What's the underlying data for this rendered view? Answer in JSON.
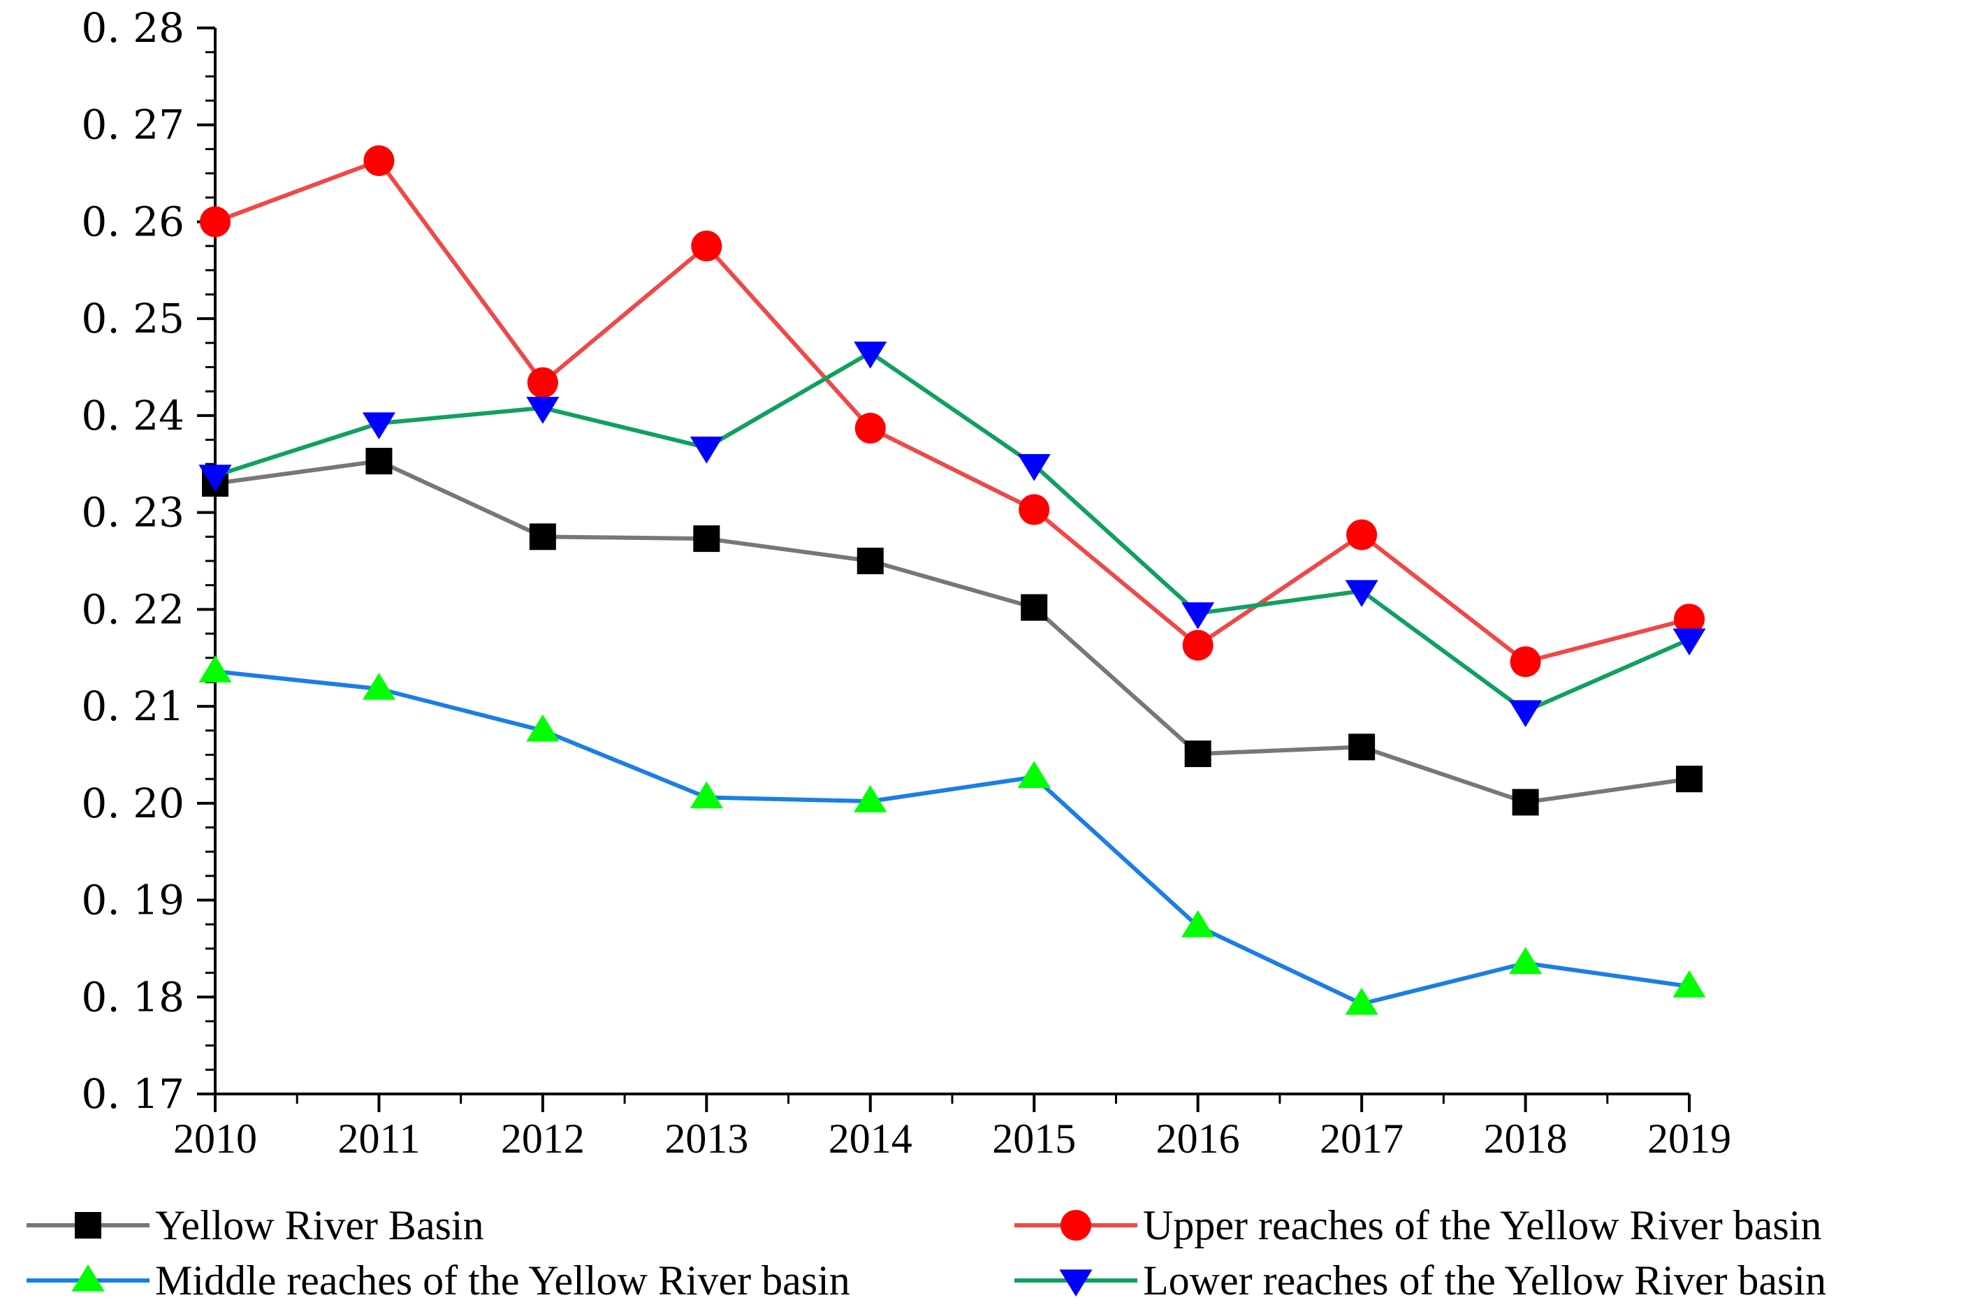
{
  "chart_data": {
    "type": "line",
    "title": "",
    "xlabel": "",
    "ylabel": "",
    "x": [
      "2010",
      "2011",
      "2012",
      "2013",
      "2014",
      "2015",
      "2016",
      "2017",
      "2018",
      "2019"
    ],
    "ylim": [
      0.17,
      0.28
    ],
    "yticks": [
      "0.17",
      "0.18",
      "0.19",
      "0.20",
      "0.21",
      "0.22",
      "0.23",
      "0.24",
      "0.25",
      "0.26",
      "0.27",
      "0.28"
    ],
    "ytick_labels": [
      "0. 17",
      "0. 18",
      "0. 19",
      "0. 20",
      "0. 21",
      "0. 22",
      "0. 23",
      "0. 24",
      "0. 25",
      "0. 26",
      "0. 27",
      "0. 28"
    ],
    "legend_position": "bottom",
    "series": [
      {
        "name": "Yellow River Basin",
        "marker": "square",
        "line_color": "#777777",
        "marker_color": "#000000",
        "values": [
          0.233,
          0.2353,
          0.2275,
          0.2273,
          0.225,
          0.2202,
          0.2051,
          0.2058,
          0.2001,
          0.2025
        ]
      },
      {
        "name": "Upper reaches of the Yellow River basin",
        "marker": "circle",
        "line_color": "#f04848",
        "marker_color": "#ff0000",
        "values": [
          0.26,
          0.2663,
          0.2434,
          0.2575,
          0.2387,
          0.2303,
          0.2163,
          0.2277,
          0.2146,
          0.219
        ]
      },
      {
        "name": "Middle reaches of the Yellow River basin",
        "marker": "triangle-up",
        "line_color": "#1a7ee6",
        "marker_color": "#00ff00",
        "values": [
          0.2136,
          0.2118,
          0.2075,
          0.2006,
          0.2002,
          0.2027,
          0.1873,
          0.1793,
          0.1835,
          0.1811
        ]
      },
      {
        "name": "Lower reaches of the Yellow River basin",
        "marker": "triangle-down",
        "line_color": "#10a060",
        "marker_color": "#0000ff",
        "values": [
          0.2338,
          0.2392,
          0.2408,
          0.2367,
          0.2465,
          0.2349,
          0.2196,
          0.2219,
          0.2095,
          0.2169
        ]
      }
    ]
  }
}
